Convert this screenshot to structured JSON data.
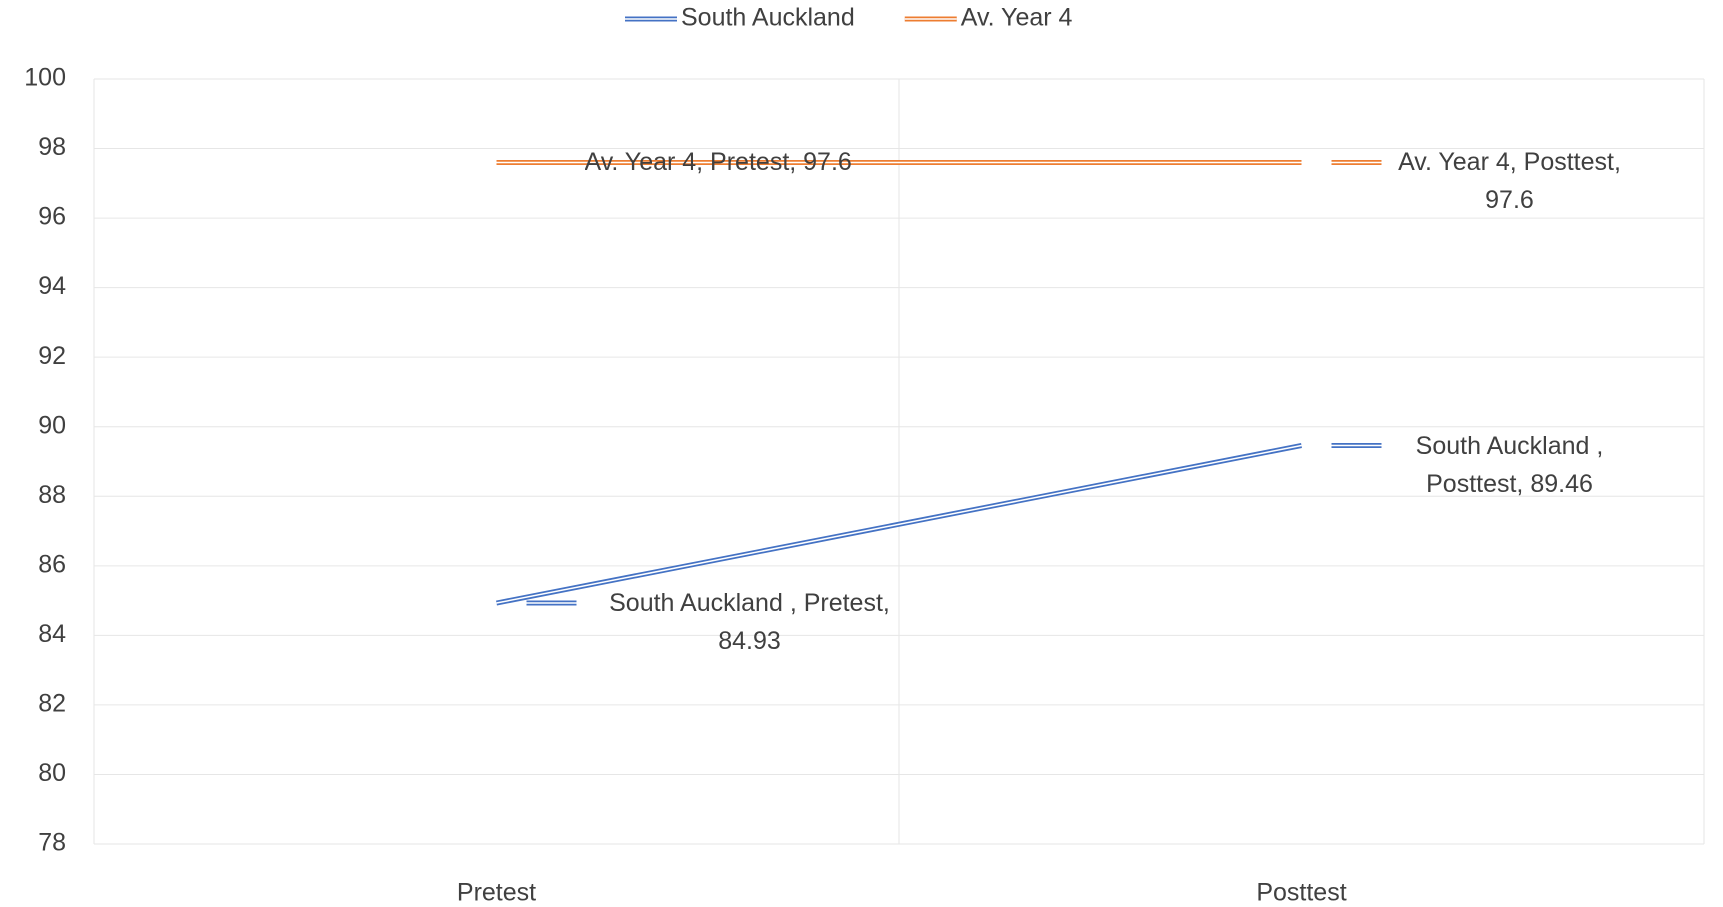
{
  "chart_data": {
    "type": "line",
    "categories": [
      "Pretest",
      "Posttest"
    ],
    "series": [
      {
        "name": "South Auckland",
        "color": "#4472c4",
        "values": [
          84.93,
          89.46
        ],
        "value_labels": [
          "South Auckland , Pretest, 84.93",
          "South Auckland , Posttest, 89.46"
        ]
      },
      {
        "name": "Av. Year 4",
        "color": "#ed7d31",
        "values": [
          97.6,
          97.6
        ],
        "value_labels": [
          "Av. Year 4, Pretest, 97.6",
          "Av. Year 4, Posttest, 97.6"
        ]
      }
    ],
    "ylim": [
      78,
      100
    ],
    "yticks": [
      78,
      80,
      82,
      84,
      86,
      88,
      90,
      92,
      94,
      96,
      98,
      100
    ],
    "grid": true,
    "legend": "top"
  }
}
